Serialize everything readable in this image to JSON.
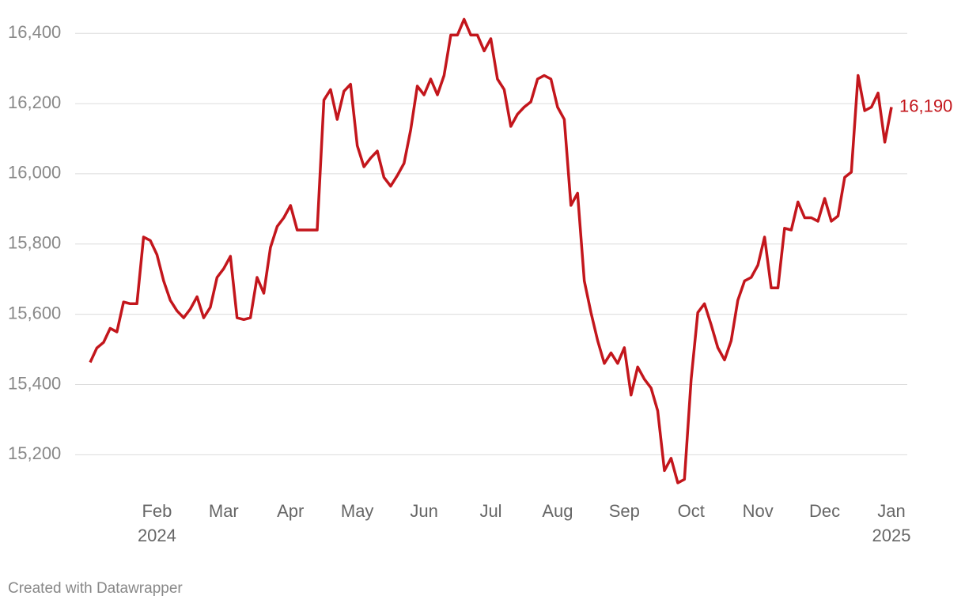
{
  "chart_data": {
    "type": "line",
    "categories": [
      null,
      null,
      null,
      null,
      null,
      null,
      null,
      null,
      null,
      null,
      "Feb",
      null,
      null,
      null,
      null,
      null,
      null,
      null,
      null,
      null,
      "Mar",
      null,
      null,
      null,
      null,
      null,
      null,
      null,
      null,
      null,
      "Apr",
      null,
      null,
      null,
      null,
      null,
      null,
      null,
      null,
      null,
      "May",
      null,
      null,
      null,
      null,
      null,
      null,
      null,
      null,
      null,
      "Jun",
      null,
      null,
      null,
      null,
      null,
      null,
      null,
      null,
      null,
      "Jul",
      null,
      null,
      null,
      null,
      null,
      null,
      null,
      null,
      null,
      "Aug",
      null,
      null,
      null,
      null,
      null,
      null,
      null,
      null,
      null,
      "Sep",
      null,
      null,
      null,
      null,
      null,
      null,
      null,
      null,
      null,
      "Oct",
      null,
      null,
      null,
      null,
      null,
      null,
      null,
      null,
      null,
      "Nov",
      null,
      null,
      null,
      null,
      null,
      null,
      null,
      null,
      null,
      "Dec",
      null,
      null,
      null,
      null,
      null,
      null,
      null,
      null,
      null,
      "Jan"
    ],
    "category_years": [
      null,
      null,
      null,
      null,
      null,
      null,
      null,
      null,
      null,
      null,
      "2024",
      null,
      null,
      null,
      null,
      null,
      null,
      null,
      null,
      null,
      null,
      null,
      null,
      null,
      null,
      null,
      null,
      null,
      null,
      null,
      null,
      null,
      null,
      null,
      null,
      null,
      null,
      null,
      null,
      null,
      null,
      null,
      null,
      null,
      null,
      null,
      null,
      null,
      null,
      null,
      null,
      null,
      null,
      null,
      null,
      null,
      null,
      null,
      null,
      null,
      null,
      null,
      null,
      null,
      null,
      null,
      null,
      null,
      null,
      null,
      null,
      null,
      null,
      null,
      null,
      null,
      null,
      null,
      null,
      null,
      null,
      null,
      null,
      null,
      null,
      null,
      null,
      null,
      null,
      null,
      null,
      null,
      null,
      null,
      null,
      null,
      null,
      null,
      null,
      null,
      null,
      null,
      null,
      null,
      null,
      null,
      null,
      null,
      null,
      null,
      null,
      null,
      null,
      null,
      null,
      null,
      null,
      null,
      null,
      null,
      "2025"
    ],
    "values": [
      15463,
      15504,
      15520,
      15560,
      15550,
      15635,
      15630,
      15630,
      15820,
      15810,
      15770,
      15695,
      15640,
      15610,
      15590,
      15615,
      15650,
      15590,
      15620,
      15705,
      15730,
      15765,
      15590,
      15585,
      15590,
      15705,
      15660,
      15790,
      15850,
      15875,
      15910,
      15840,
      15840,
      15840,
      15840,
      16210,
      16240,
      16155,
      16235,
      16255,
      16080,
      16020,
      16045,
      16065,
      15990,
      15965,
      15995,
      16030,
      16125,
      16250,
      16225,
      16270,
      16225,
      16280,
      16395,
      16395,
      16440,
      16395,
      16395,
      16350,
      16385,
      16270,
      16240,
      16135,
      16170,
      16190,
      16205,
      16270,
      16280,
      16270,
      16190,
      16155,
      15910,
      15945,
      15695,
      15605,
      15525,
      15460,
      15490,
      15460,
      15505,
      15370,
      15450,
      15415,
      15390,
      15325,
      15155,
      15190,
      15120,
      15130,
      15415,
      15605,
      15630,
      15570,
      15505,
      15470,
      15525,
      15640,
      15695,
      15705,
      15740,
      15820,
      15675,
      15675,
      15845,
      15840,
      15920,
      15875,
      15875,
      15865,
      15930,
      15865,
      15880,
      15990,
      16005,
      16280,
      16180,
      16190,
      16230,
      16090,
      16190
    ],
    "value_labels": [
      null,
      null,
      null,
      null,
      null,
      null,
      null,
      null,
      null,
      null,
      null,
      null,
      null,
      null,
      null,
      null,
      null,
      null,
      null,
      null,
      null,
      null,
      null,
      null,
      null,
      null,
      null,
      null,
      null,
      null,
      null,
      null,
      null,
      null,
      null,
      null,
      null,
      null,
      null,
      null,
      null,
      null,
      null,
      null,
      null,
      null,
      null,
      null,
      null,
      null,
      null,
      null,
      null,
      null,
      null,
      null,
      null,
      null,
      null,
      null,
      null,
      null,
      null,
      null,
      null,
      null,
      null,
      null,
      null,
      null,
      null,
      null,
      null,
      null,
      null,
      null,
      null,
      null,
      null,
      null,
      null,
      null,
      null,
      null,
      null,
      null,
      null,
      null,
      null,
      null,
      null,
      null,
      null,
      null,
      null,
      null,
      null,
      null,
      null,
      null,
      null,
      null,
      null,
      null,
      null,
      null,
      null,
      null,
      null,
      null,
      null,
      null,
      null,
      null,
      null,
      null,
      null,
      null,
      null,
      null,
      "16,190"
    ],
    "color": "#c3161c",
    "ylim": [
      15050,
      16450
    ],
    "yticks": [
      {
        "value": 15200,
        "label": "15,200"
      },
      {
        "value": 15400,
        "label": "15,400"
      },
      {
        "value": 15600,
        "label": "15,600"
      },
      {
        "value": 15800,
        "label": "15,800"
      },
      {
        "value": 16000,
        "label": "16,000"
      },
      {
        "value": 16200,
        "label": "16,200"
      },
      {
        "value": 16400,
        "label": "16,400"
      }
    ],
    "grid": true,
    "credit": "Created with Datawrapper"
  }
}
